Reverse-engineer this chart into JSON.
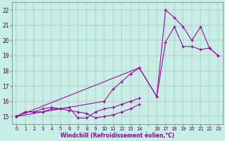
{
  "bg_color": "#c8eee8",
  "line_color": "#990099",
  "xlabel": "Windchill (Refroidissement éolien,°C)",
  "xlim": [
    -0.5,
    23.5
  ],
  "ylim": [
    14.5,
    22.5
  ],
  "lines": [
    {
      "x": [
        0,
        1,
        2,
        3,
        4,
        5,
        6,
        7,
        8,
        9,
        10,
        11,
        12,
        13,
        14
      ],
      "y": [
        15.0,
        15.3,
        15.3,
        15.3,
        15.5,
        15.5,
        15.6,
        14.9,
        14.9,
        15.3,
        15.5,
        15.6,
        15.8,
        16.0,
        16.2
      ]
    },
    {
      "x": [
        0,
        1,
        2,
        3,
        4,
        5,
        6,
        7,
        8,
        9,
        10,
        11,
        12,
        13,
        14
      ],
      "y": [
        15.0,
        15.3,
        15.3,
        15.5,
        15.6,
        15.5,
        15.4,
        15.3,
        15.2,
        14.9,
        15.0,
        15.1,
        15.3,
        15.5,
        15.8
      ]
    },
    {
      "x": [
        0,
        10,
        11,
        12,
        13,
        14,
        16,
        17,
        18,
        19,
        20,
        21,
        22,
        23
      ],
      "y": [
        15.0,
        16.0,
        16.8,
        17.3,
        17.8,
        18.2,
        16.3,
        19.9,
        20.9,
        19.6,
        19.6,
        19.4,
        19.5,
        19.0
      ]
    },
    {
      "x": [
        0,
        14,
        16,
        17,
        18,
        19,
        20,
        21,
        22,
        23
      ],
      "y": [
        15.0,
        18.2,
        16.3,
        22.0,
        21.5,
        20.9,
        20.0,
        20.9,
        19.5,
        19.0
      ]
    }
  ],
  "xtick_positions": [
    0,
    1,
    2,
    3,
    4,
    5,
    6,
    7,
    8,
    9,
    10,
    11,
    12,
    13,
    14,
    15,
    16,
    17,
    18,
    19,
    20,
    21,
    22,
    23
  ],
  "xtick_labels": [
    "0",
    "1",
    "2",
    "3",
    "4",
    "5",
    "6",
    "7",
    "8",
    "9",
    "10",
    "11",
    "12",
    "13",
    "14",
    "",
    "16",
    "17",
    "18",
    "19",
    "20",
    "21",
    "22",
    "23"
  ],
  "ytick_positions": [
    15,
    16,
    17,
    18,
    19,
    20,
    21,
    22
  ],
  "ytick_labels": [
    "15",
    "16",
    "17",
    "18",
    "19",
    "20",
    "21",
    "22"
  ]
}
